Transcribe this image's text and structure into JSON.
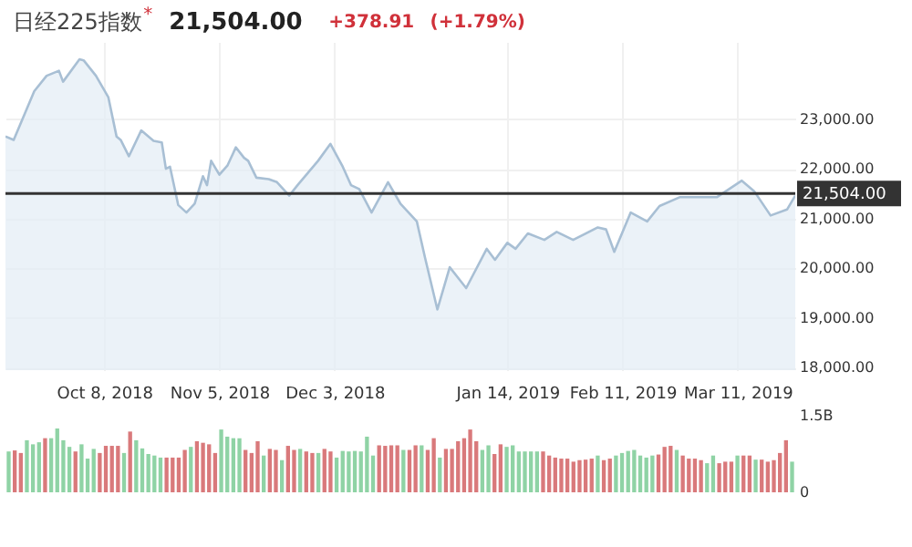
{
  "chart_data": [
    {
      "type": "area",
      "title": "日经225指数",
      "annotations": [
        "*",
        "21,504.00",
        "+378.91",
        "(+1.79%)"
      ],
      "x": [
        "2018-09-14",
        "2018-09-16",
        "2018-09-21",
        "2018-09-24",
        "2018-09-27",
        "2018-09-28",
        "2018-10-02",
        "2018-10-03",
        "2018-10-06",
        "2018-10-09",
        "2018-10-11",
        "2018-10-12",
        "2018-10-14",
        "2018-10-17",
        "2018-10-20",
        "2018-10-22",
        "2018-10-23",
        "2018-10-24",
        "2018-10-26",
        "2018-10-28",
        "2018-10-30",
        "2018-11-01",
        "2018-11-02",
        "2018-11-03",
        "2018-11-05",
        "2018-11-07",
        "2018-11-09",
        "2018-11-11",
        "2018-11-12",
        "2018-11-14",
        "2018-11-17",
        "2018-11-19",
        "2018-11-22",
        "2018-11-24",
        "2018-11-29",
        "2018-12-02",
        "2018-12-05",
        "2018-12-07",
        "2018-12-09",
        "2018-12-12",
        "2018-12-16",
        "2018-12-19",
        "2018-12-23",
        "2018-12-25",
        "2018-12-28",
        "2018-12-31",
        "2019-01-04",
        "2019-01-09",
        "2019-01-11",
        "2019-01-14",
        "2019-01-16",
        "2019-01-19",
        "2019-01-23",
        "2019-01-26",
        "2019-01-30",
        "2019-02-05",
        "2019-02-07",
        "2019-02-09",
        "2019-02-13",
        "2019-02-17",
        "2019-02-20",
        "2019-02-25",
        "2019-03-06",
        "2019-03-12",
        "2019-03-15",
        "2019-03-19",
        "2019-03-23",
        "2019-03-25"
      ],
      "series": [
        {
          "type": "area",
          "color": "#a8bfd4",
          "values": [
            22650,
            22580,
            23560,
            23870,
            23970,
            23750,
            24200,
            24180,
            23870,
            23440,
            22650,
            22580,
            22250,
            22770,
            22560,
            22530,
            22000,
            22040,
            21270,
            21120,
            21300,
            21850,
            21670,
            22160,
            21880,
            22070,
            22430,
            22220,
            22160,
            21820,
            21790,
            21730,
            21460,
            21670,
            22160,
            22500,
            22040,
            21670,
            21590,
            21120,
            21730,
            21300,
            20940,
            20210,
            19170,
            20020,
            19600,
            20390,
            20170,
            20510,
            20390,
            20700,
            20570,
            20730,
            20570,
            20820,
            20780,
            20330,
            21120,
            20940,
            21250,
            21430,
            21430,
            21760,
            21550,
            21060,
            21180,
            21460
          ]
        }
      ],
      "xlim": [
        "2018-09-14",
        "2019-03-25"
      ],
      "xticks": [
        {
          "value": "2018-10-08",
          "label": "Oct 8, 2018"
        },
        {
          "value": "2018-11-05",
          "label": "Nov 5, 2018"
        },
        {
          "value": "2018-12-03",
          "label": "Dec 3, 2018"
        },
        {
          "value": "2019-01-14",
          "label": "Jan 14, 2019"
        },
        {
          "value": "2019-02-11",
          "label": "Feb 11, 2019"
        },
        {
          "value": "2019-03-11",
          "label": "Mar 11, 2019"
        }
      ],
      "ylim": [
        17950,
        24550
      ],
      "yticks": [
        {
          "value": 18000,
          "label": "18,000.00"
        },
        {
          "value": 19000,
          "label": "19,000.00"
        },
        {
          "value": 20000,
          "label": "20,000.00"
        },
        {
          "value": 21000,
          "label": "21,000.00"
        },
        {
          "value": 22000,
          "label": "22,000.00"
        },
        {
          "value": 23000,
          "label": "23,000.00"
        }
      ],
      "ref_lines": [
        {
          "axis": "y",
          "value": 21504,
          "label": "21,504.00",
          "color": "#333333"
        }
      ],
      "grid": true
    },
    {
      "type": "bar",
      "tick_labels": "y",
      "categories": [
        null,
        null,
        null,
        null,
        null,
        null,
        null,
        null,
        null,
        null,
        null,
        null,
        null,
        null,
        null,
        null,
        null,
        null,
        null,
        null,
        null,
        null,
        null,
        null,
        null,
        null,
        null,
        null,
        null,
        null,
        null,
        null,
        null,
        null,
        null,
        null,
        null,
        null,
        null,
        null,
        null,
        null,
        null,
        null,
        null,
        null,
        null,
        null,
        null,
        null,
        null,
        null,
        null,
        null,
        null,
        null,
        null,
        null,
        null,
        null,
        null,
        null,
        null,
        null,
        null,
        null,
        null,
        null,
        null,
        null,
        null,
        null,
        null,
        null,
        null,
        null,
        null,
        null,
        null,
        null,
        null,
        null,
        null,
        null,
        null,
        null,
        null,
        null,
        null,
        null,
        null,
        null,
        null,
        null,
        null,
        null,
        null,
        null,
        null,
        null,
        null,
        null,
        null,
        null,
        null,
        null,
        null,
        null,
        null,
        null,
        null,
        null,
        null,
        null,
        null,
        null,
        null,
        null,
        null,
        null,
        null,
        null,
        null,
        null,
        null,
        null,
        null,
        null,
        null,
        null
      ],
      "values": [
        0.8,
        0.82,
        0.77,
        1.02,
        0.94,
        0.98,
        1.06,
        1.06,
        1.25,
        1.02,
        0.89,
        0.8,
        0.94,
        0.66,
        0.85,
        0.77,
        0.91,
        0.91,
        0.91,
        0.77,
        1.19,
        1.02,
        0.86,
        0.75,
        0.72,
        0.68,
        0.68,
        0.68,
        0.68,
        0.83,
        0.89,
        1.0,
        0.97,
        0.94,
        0.77,
        1.23,
        1.09,
        1.06,
        1.06,
        0.83,
        0.77,
        1.0,
        0.72,
        0.85,
        0.83,
        0.63,
        0.91,
        0.83,
        0.85,
        0.8,
        0.77,
        0.77,
        0.85,
        0.8,
        0.68,
        0.81,
        0.8,
        0.81,
        0.8,
        1.09,
        0.72,
        0.92,
        0.91,
        0.92,
        0.92,
        0.83,
        0.83,
        0.92,
        0.92,
        0.83,
        1.06,
        0.68,
        0.85,
        0.85,
        1.0,
        1.06,
        1.23,
        1.0,
        0.83,
        0.92,
        0.75,
        0.94,
        0.89,
        0.92,
        0.8,
        0.8,
        0.8,
        0.8,
        0.8,
        0.72,
        0.68,
        0.66,
        0.66,
        0.6,
        0.63,
        0.64,
        0.66,
        0.72,
        0.63,
        0.66,
        0.72,
        0.77,
        0.81,
        0.83,
        0.72,
        0.68,
        0.72,
        0.74,
        0.89,
        0.91,
        0.83,
        0.72,
        0.66,
        0.66,
        0.63,
        0.57,
        0.72,
        0.57,
        0.6,
        0.6,
        0.72,
        0.72,
        0.72,
        0.64,
        0.64,
        0.6,
        0.63,
        0.77,
        1.02,
        0.6
      ],
      "colors": [
        "#8fd3a5",
        "#d9797b",
        "#d9797b",
        "#8fd3a5",
        "#8fd3a5",
        "#8fd3a5",
        "#d9797b",
        "#8fd3a5",
        "#8fd3a5",
        "#8fd3a5",
        "#8fd3a5",
        "#d9797b",
        "#8fd3a5",
        "#8fd3a5",
        "#8fd3a5",
        "#d9797b",
        "#d9797b",
        "#d9797b",
        "#d9797b",
        "#8fd3a5",
        "#d9797b",
        "#8fd3a5",
        "#8fd3a5",
        "#8fd3a5",
        "#8fd3a5",
        "#8fd3a5",
        "#d9797b",
        "#d9797b",
        "#d9797b",
        "#d9797b",
        "#8fd3a5",
        "#d9797b",
        "#d9797b",
        "#d9797b",
        "#d9797b",
        "#8fd3a5",
        "#8fd3a5",
        "#8fd3a5",
        "#8fd3a5",
        "#d9797b",
        "#d9797b",
        "#d9797b",
        "#8fd3a5",
        "#d9797b",
        "#d9797b",
        "#8fd3a5",
        "#d9797b",
        "#d9797b",
        "#8fd3a5",
        "#d9797b",
        "#d9797b",
        "#8fd3a5",
        "#d9797b",
        "#d9797b",
        "#8fd3a5",
        "#8fd3a5",
        "#8fd3a5",
        "#8fd3a5",
        "#8fd3a5",
        "#8fd3a5",
        "#8fd3a5",
        "#d9797b",
        "#d9797b",
        "#d9797b",
        "#d9797b",
        "#8fd3a5",
        "#d9797b",
        "#d9797b",
        "#8fd3a5",
        "#d9797b",
        "#d9797b",
        "#8fd3a5",
        "#d9797b",
        "#d9797b",
        "#d9797b",
        "#d9797b",
        "#d9797b",
        "#d9797b",
        "#8fd3a5",
        "#8fd3a5",
        "#d9797b",
        "#d9797b",
        "#8fd3a5",
        "#8fd3a5",
        "#8fd3a5",
        "#8fd3a5",
        "#8fd3a5",
        "#8fd3a5",
        "#d9797b",
        "#d9797b",
        "#d9797b",
        "#d9797b",
        "#d9797b",
        "#d9797b",
        "#d9797b",
        "#d9797b",
        "#d9797b",
        "#8fd3a5",
        "#d9797b",
        "#d9797b",
        "#8fd3a5",
        "#8fd3a5",
        "#8fd3a5",
        "#8fd3a5",
        "#8fd3a5",
        "#8fd3a5",
        "#8fd3a5",
        "#d9797b",
        "#d9797b",
        "#d9797b",
        "#8fd3a5",
        "#d9797b",
        "#d9797b",
        "#d9797b",
        "#d9797b",
        "#8fd3a5",
        "#8fd3a5",
        "#d9797b",
        "#d9797b",
        "#d9797b",
        "#8fd3a5",
        "#d9797b",
        "#d9797b",
        "#8fd3a5",
        "#d9797b",
        "#d9797b",
        "#d9797b",
        "#d9797b",
        "#d9797b",
        "#8fd3a5"
      ],
      "ylim": [
        0,
        1.5
      ],
      "yticks": [
        {
          "value": 0,
          "label": "0"
        },
        {
          "value": 1.5,
          "label": "1.5B"
        }
      ]
    }
  ]
}
